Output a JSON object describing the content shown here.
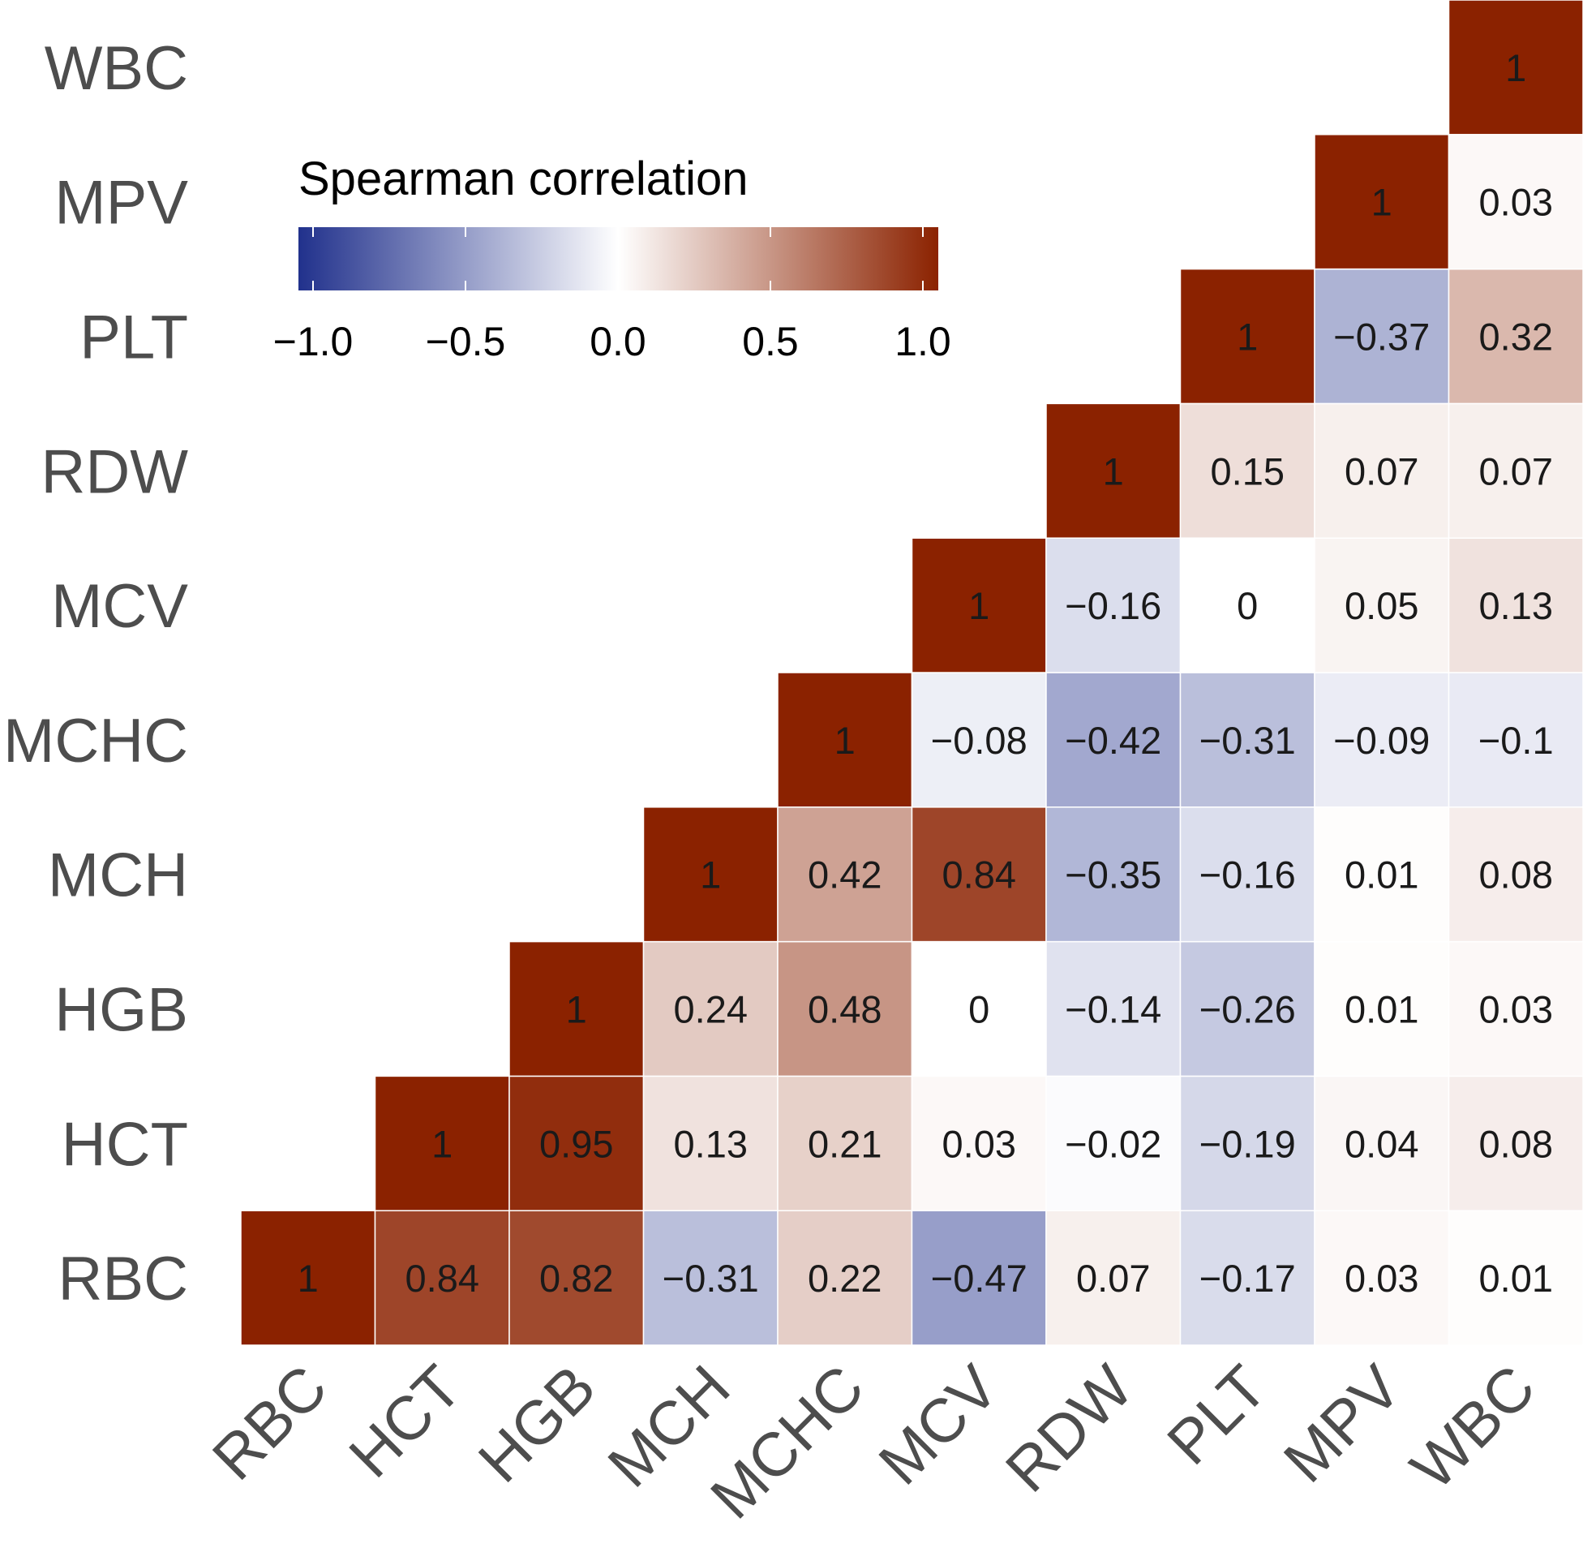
{
  "chart_data": {
    "type": "heatmap",
    "layout": "lower-triangle",
    "variables": [
      "RBC",
      "HCT",
      "HGB",
      "MCH",
      "MCHC",
      "MCV",
      "RDW",
      "PLT",
      "MPV",
      "WBC"
    ],
    "matrix": [
      [
        1,
        0.84,
        0.82,
        -0.31,
        0.22,
        -0.47,
        0.07,
        -0.17,
        0.03,
        0.01
      ],
      [
        0.84,
        1,
        0.95,
        0.13,
        0.21,
        0.03,
        -0.02,
        -0.19,
        0.04,
        0.08
      ],
      [
        0.82,
        0.95,
        1,
        0.24,
        0.48,
        0,
        -0.14,
        -0.26,
        0.01,
        0.03
      ],
      [
        -0.31,
        0.13,
        0.24,
        1,
        0.42,
        0.84,
        -0.35,
        -0.16,
        0.01,
        0.08
      ],
      [
        0.22,
        0.21,
        0.48,
        0.42,
        1,
        -0.08,
        -0.42,
        -0.31,
        -0.09,
        -0.1
      ],
      [
        -0.47,
        0.03,
        0,
        0.84,
        -0.08,
        1,
        -0.16,
        0,
        0.05,
        0.13
      ],
      [
        0.07,
        -0.02,
        -0.14,
        -0.35,
        -0.42,
        -0.16,
        1,
        0.15,
        0.07,
        0.07
      ],
      [
        -0.17,
        -0.19,
        -0.26,
        -0.16,
        -0.31,
        0,
        0.15,
        1,
        -0.37,
        0.32
      ],
      [
        0.03,
        0.04,
        0.01,
        0.01,
        -0.09,
        0.05,
        0.07,
        -0.37,
        1,
        0.03
      ],
      [
        0.01,
        0.08,
        0.03,
        0.08,
        -0.1,
        0.13,
        0.07,
        0.32,
        0.03,
        1
      ]
    ],
    "legend": {
      "title": "Spearman correlation",
      "range": [
        -1,
        1
      ],
      "ticks": [
        -1.0,
        -0.5,
        0.0,
        0.5,
        1.0
      ],
      "tick_labels": [
        "−1.0",
        "−0.5",
        "0.0",
        "0.5",
        "1.0"
      ],
      "placement": "top-left"
    },
    "colors": {
      "low": "#21318c",
      "mid": "#ffffff",
      "high": "#8b2200"
    },
    "grid": false
  }
}
